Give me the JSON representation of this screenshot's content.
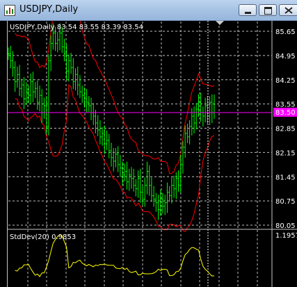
{
  "window": {
    "title": "USDJPY,Daily",
    "app_icon": "chart-icon",
    "buttons": {
      "minimize_icon": "minimize-icon",
      "maximize_icon": "maximize-icon",
      "close_icon": "close-icon"
    }
  },
  "main_chart": {
    "label": "USDJPY,Daily  83.54 83.55 83.39 83.54",
    "bid_label": "83.50",
    "bid_color": "#ff00ff",
    "candle_color": "#00ff00",
    "band_color": "#ff0000",
    "grid_color": "#c0c0c0"
  },
  "indicator": {
    "label": "StdDev(20) 0.9853",
    "value_label": "1.1957",
    "line_color": "#ffff00"
  },
  "chart_data": {
    "type": "line",
    "title": "USDJPY,Daily",
    "y_ticks": [
      "85.65",
      "84.95",
      "84.25",
      "83.55",
      "82.85",
      "82.15",
      "81.45",
      "80.75",
      "80.05"
    ],
    "ylim": [
      80.05,
      85.95
    ],
    "grid": true,
    "series": [
      {
        "values": [
          85.0,
          84.8,
          84.6,
          84.2,
          84.4,
          84.0,
          84.1,
          83.7,
          83.9,
          83.8,
          84.2,
          83.9,
          84.0,
          83.6,
          83.8,
          83.3,
          83.5,
          82.9,
          84.8,
          85.3,
          85.6,
          85.3,
          85.4,
          85.6,
          85.2,
          85.0,
          84.5,
          84.8,
          84.6,
          84.2,
          84.4,
          84.1,
          83.9,
          83.8,
          83.7,
          83.6,
          83.5,
          83.3,
          83.2,
          83.0,
          82.8,
          82.6,
          82.7,
          82.4,
          82.5,
          82.2,
          82.0,
          81.9,
          82.1,
          81.8,
          81.7,
          81.5,
          81.6,
          81.3,
          81.5,
          81.4,
          81.2,
          81.1,
          81.4,
          81.0,
          80.8,
          81.2,
          81.6,
          81.2,
          80.9,
          80.8,
          80.7,
          80.5,
          80.8,
          80.6,
          80.7,
          81.0,
          80.9,
          81.2,
          81.1,
          81.4,
          81.2,
          81.8,
          82.3,
          82.7,
          82.6,
          82.9,
          83.2,
          83.0,
          83.4,
          83.6,
          83.3,
          83.2,
          83.5,
          83.2,
          83.6,
          83.3,
          83.54
        ]
      }
    ]
  }
}
